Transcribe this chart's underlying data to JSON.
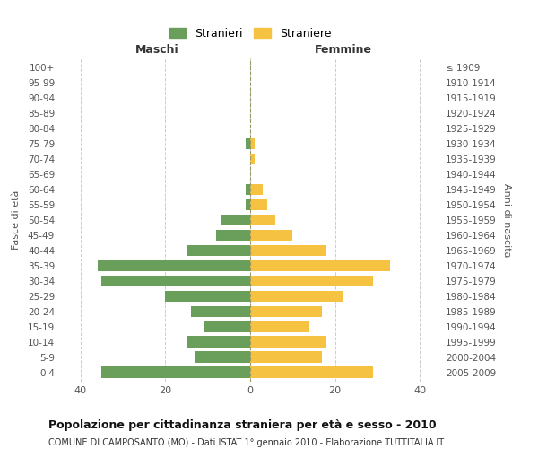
{
  "age_groups": [
    "0-4",
    "5-9",
    "10-14",
    "15-19",
    "20-24",
    "25-29",
    "30-34",
    "35-39",
    "40-44",
    "45-49",
    "50-54",
    "55-59",
    "60-64",
    "65-69",
    "70-74",
    "75-79",
    "80-84",
    "85-89",
    "90-94",
    "95-99",
    "100+"
  ],
  "birth_years": [
    "2005-2009",
    "2000-2004",
    "1995-1999",
    "1990-1994",
    "1985-1989",
    "1980-1984",
    "1975-1979",
    "1970-1974",
    "1965-1969",
    "1960-1964",
    "1955-1959",
    "1950-1954",
    "1945-1949",
    "1940-1944",
    "1935-1939",
    "1930-1934",
    "1925-1929",
    "1920-1924",
    "1915-1919",
    "1910-1914",
    "≤ 1909"
  ],
  "maschi": [
    35,
    13,
    15,
    11,
    14,
    20,
    35,
    36,
    15,
    8,
    7,
    1,
    1,
    0,
    0,
    1,
    0,
    0,
    0,
    0,
    0
  ],
  "femmine": [
    29,
    17,
    18,
    14,
    17,
    22,
    29,
    33,
    18,
    10,
    6,
    4,
    3,
    0,
    1,
    1,
    0,
    0,
    0,
    0,
    0
  ],
  "maschi_color": "#6a9f5b",
  "femmine_color": "#f5c242",
  "background_color": "#ffffff",
  "grid_color": "#cccccc",
  "title": "Popolazione per cittadinanza straniera per età e sesso - 2010",
  "subtitle": "COMUNE DI CAMPOSANTO (MO) - Dati ISTAT 1° gennaio 2010 - Elaborazione TUTTITALIA.IT",
  "xlabel_left": "Maschi",
  "xlabel_right": "Femmine",
  "ylabel_left": "Fasce di età",
  "ylabel_right": "Anni di nascita",
  "legend_maschi": "Stranieri",
  "legend_femmine": "Straniere",
  "xlim": 45,
  "xticks": [
    -40,
    -20,
    0,
    20,
    40
  ],
  "xticklabels": [
    "40",
    "20",
    "0",
    "20",
    "40"
  ]
}
